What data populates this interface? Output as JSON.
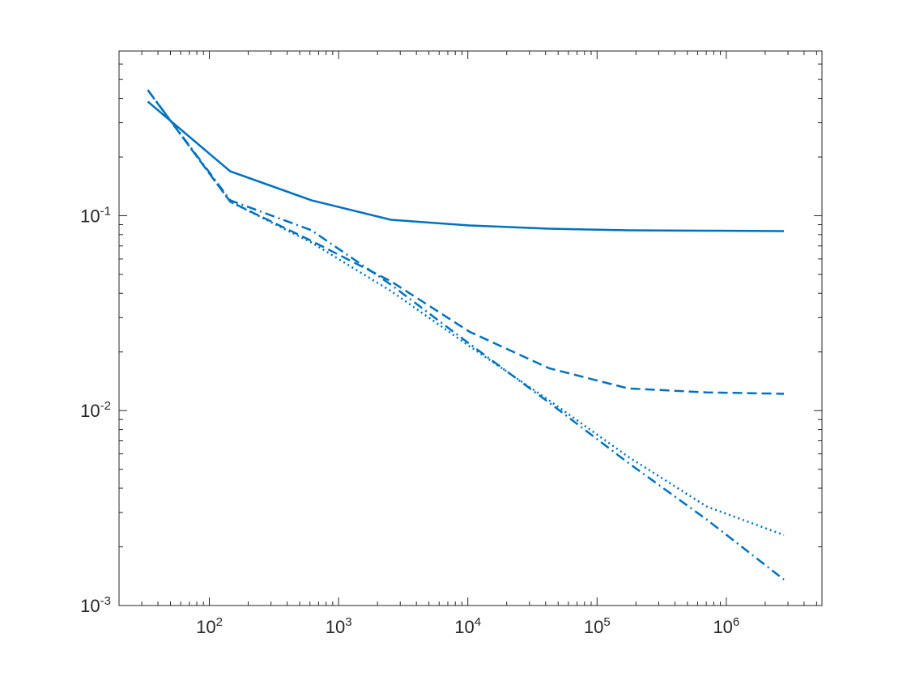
{
  "chart_data": {
    "type": "line",
    "xscale": "log",
    "yscale": "log",
    "box": true,
    "minor_ticks": true,
    "xlim": [
      20,
      5500000
    ],
    "ylim": [
      0.001,
      0.7
    ],
    "xticks": [
      {
        "value": 100,
        "label": "10^2"
      },
      {
        "value": 1000,
        "label": "10^3"
      },
      {
        "value": 10000,
        "label": "10^4"
      },
      {
        "value": 100000,
        "label": "10^5"
      },
      {
        "value": 1000000,
        "label": "10^6"
      }
    ],
    "yticks": [
      {
        "value": 0.001,
        "label": "10^-3"
      },
      {
        "value": 0.01,
        "label": "10^-2"
      },
      {
        "value": 0.1,
        "label": "10^-1"
      }
    ],
    "x": [
      33.4,
      145,
      616,
      2540,
      10300,
      42500,
      174000,
      706000,
      2790000
    ],
    "series": [
      {
        "color": "#0072BD",
        "dash": "solid",
        "values": [
          0.385,
          0.169,
          0.12,
          0.0953,
          0.0891,
          0.0858,
          0.0842,
          0.0838,
          0.0834
        ]
      },
      {
        "color": "#0072BD",
        "dash": "dashed",
        "values": [
          0.441,
          0.118,
          0.0743,
          0.0461,
          0.0254,
          0.0165,
          0.013,
          0.0124,
          0.0122
        ]
      },
      {
        "color": "#0072BD",
        "dash": "dotted",
        "values": [
          0.441,
          0.118,
          0.0729,
          0.0411,
          0.0214,
          0.0113,
          0.0058,
          0.00322,
          0.0023
        ]
      },
      {
        "color": "#0072BD",
        "dash": "dashdot",
        "values": [
          0.441,
          0.12,
          0.0842,
          0.0443,
          0.022,
          0.011,
          0.0054,
          0.00276,
          0.00136
        ]
      }
    ]
  }
}
